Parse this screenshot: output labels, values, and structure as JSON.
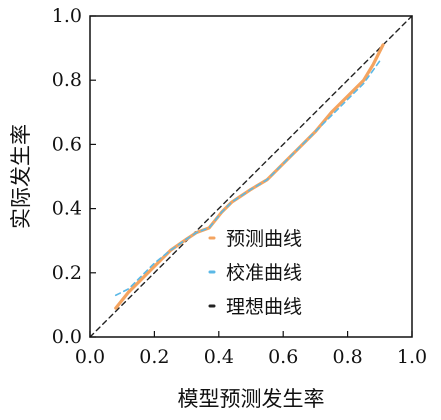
{
  "chart_data": {
    "type": "line",
    "title": "",
    "xlabel": "模型预测发生率",
    "ylabel": "实际发生率",
    "xlim": [
      0.0,
      1.0
    ],
    "ylim": [
      0.0,
      1.0
    ],
    "x_ticks": [
      "0.0",
      "0.2",
      "0.4",
      "0.6",
      "0.8",
      "1.0"
    ],
    "y_ticks": [
      "0.0",
      "0.2",
      "0.4",
      "0.6",
      "0.8",
      "1.0"
    ],
    "grid": false,
    "legend_position": "lower-center",
    "series": [
      {
        "name": "预测曲线",
        "color": "#f4a460",
        "style": "solid",
        "points": [
          [
            0.08,
            0.09
          ],
          [
            0.12,
            0.14
          ],
          [
            0.16,
            0.18
          ],
          [
            0.2,
            0.22
          ],
          [
            0.25,
            0.27
          ],
          [
            0.3,
            0.305
          ],
          [
            0.33,
            0.325
          ],
          [
            0.37,
            0.34
          ],
          [
            0.41,
            0.39
          ],
          [
            0.44,
            0.42
          ],
          [
            0.47,
            0.44
          ],
          [
            0.5,
            0.46
          ],
          [
            0.55,
            0.49
          ],
          [
            0.6,
            0.54
          ],
          [
            0.65,
            0.59
          ],
          [
            0.7,
            0.64
          ],
          [
            0.75,
            0.7
          ],
          [
            0.8,
            0.75
          ],
          [
            0.85,
            0.8
          ],
          [
            0.88,
            0.85
          ],
          [
            0.91,
            0.91
          ]
        ]
      },
      {
        "name": "校准曲线",
        "color": "#5bb8e6",
        "style": "dashed",
        "points": [
          [
            0.08,
            0.13
          ],
          [
            0.12,
            0.15
          ],
          [
            0.16,
            0.19
          ],
          [
            0.2,
            0.23
          ],
          [
            0.25,
            0.27
          ],
          [
            0.3,
            0.305
          ],
          [
            0.33,
            0.325
          ],
          [
            0.37,
            0.34
          ],
          [
            0.41,
            0.39
          ],
          [
            0.44,
            0.42
          ],
          [
            0.47,
            0.44
          ],
          [
            0.5,
            0.46
          ],
          [
            0.55,
            0.49
          ],
          [
            0.6,
            0.54
          ],
          [
            0.65,
            0.59
          ],
          [
            0.7,
            0.64
          ],
          [
            0.75,
            0.69
          ],
          [
            0.8,
            0.74
          ],
          [
            0.85,
            0.79
          ],
          [
            0.9,
            0.86
          ]
        ]
      },
      {
        "name": "理想曲线",
        "color": "#222222",
        "style": "dashed",
        "points": [
          [
            0.0,
            0.0
          ],
          [
            1.0,
            1.0
          ]
        ]
      }
    ]
  }
}
